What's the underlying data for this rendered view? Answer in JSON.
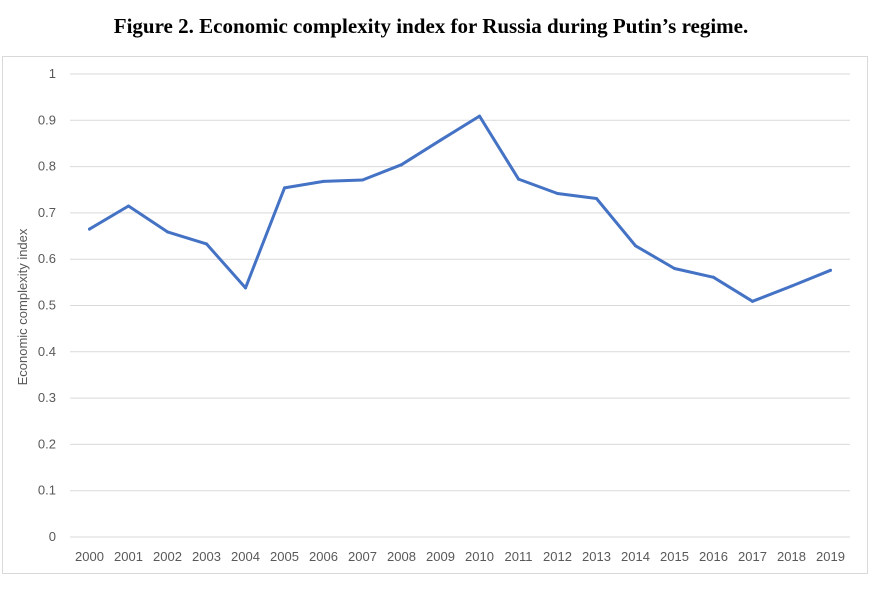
{
  "page": {
    "title": "Figure 2. Economic complexity index for Russia during Putin’s regime."
  },
  "chart_data": {
    "type": "line",
    "title": "Figure 2. Economic complexity index for Russia during Putin’s regime.",
    "xlabel": "",
    "ylabel": "Economic complexity index",
    "categories": [
      "2000",
      "2001",
      "2002",
      "2003",
      "2004",
      "2005",
      "2006",
      "2007",
      "2008",
      "2009",
      "2010",
      "2011",
      "2012",
      "2013",
      "2014",
      "2015",
      "2016",
      "2017",
      "2018",
      "2019"
    ],
    "series": [
      {
        "values": [
          0.665,
          0.715,
          0.659,
          0.633,
          0.538,
          0.754,
          0.768,
          0.771,
          0.804,
          0.857,
          0.909,
          0.773,
          0.742,
          0.731,
          0.629,
          0.58,
          0.561,
          0.509,
          0.542,
          0.576
        ]
      }
    ],
    "ylim": [
      0,
      1
    ],
    "yticks": [
      "0",
      "0.1",
      "0.2",
      "0.3",
      "0.4",
      "0.5",
      "0.6",
      "0.7",
      "0.8",
      "0.9",
      "1"
    ],
    "grid": true,
    "legend": "none",
    "line_color": "#4472c4",
    "grid_color": "#d9d9d9"
  }
}
